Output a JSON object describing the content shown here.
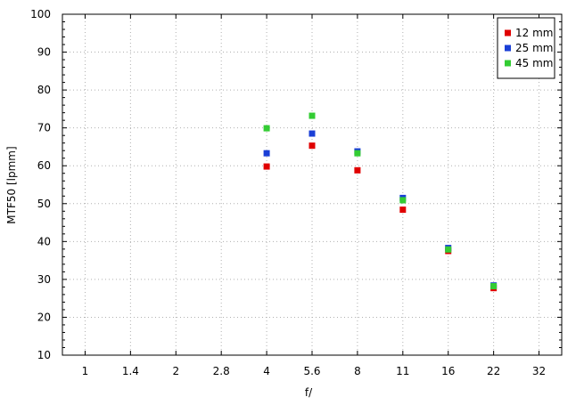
{
  "chart_data": {
    "type": "scatter",
    "xlabel": "f/",
    "ylabel": "MTF50 [lpmm]",
    "categories": [
      "1",
      "1.4",
      "2",
      "2.8",
      "4",
      "5.6",
      "8",
      "11",
      "16",
      "22",
      "32"
    ],
    "ylim": [
      10,
      100
    ],
    "yticks": [
      10,
      20,
      30,
      40,
      50,
      60,
      70,
      80,
      90,
      100
    ],
    "grid": true,
    "legend_position": "top-right",
    "series": [
      {
        "name": "12 mm",
        "color": "#e00000",
        "values": [
          null,
          null,
          null,
          null,
          59.8,
          65.3,
          58.8,
          48.4,
          37.5,
          27.7,
          null
        ]
      },
      {
        "name": "25 mm",
        "color": "#1a3fd6",
        "values": [
          null,
          null,
          null,
          null,
          63.3,
          68.5,
          63.8,
          51.5,
          38.3,
          28.4,
          null
        ]
      },
      {
        "name": "45 mm",
        "color": "#33cc33",
        "values": [
          null,
          null,
          null,
          null,
          69.9,
          73.2,
          63.3,
          50.9,
          37.9,
          28.2,
          null
        ]
      }
    ]
  }
}
